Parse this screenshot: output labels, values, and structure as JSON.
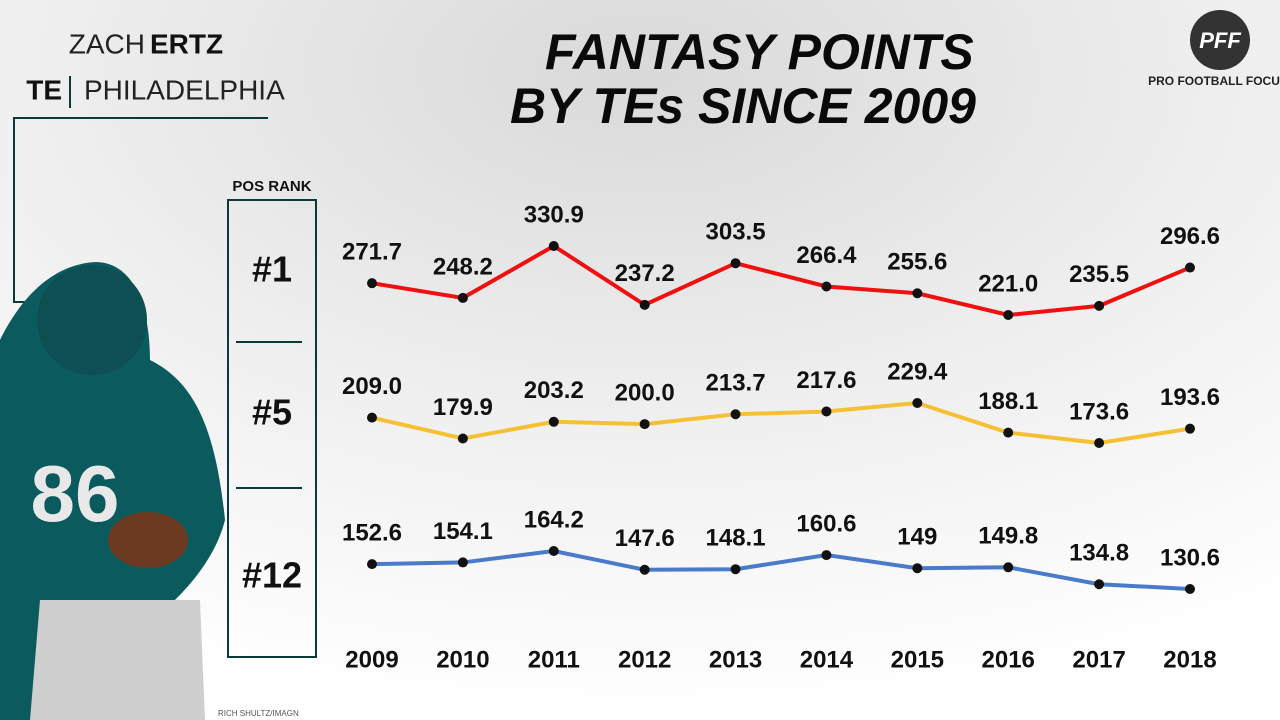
{
  "header": {
    "first_name": "ZACH",
    "last_name": "ERTZ",
    "position": "TE",
    "team": "PHILADELPHIA"
  },
  "logo": {
    "mark": "PFF",
    "text": "PRO FOOTBALL FOCUS"
  },
  "rank_label": "POS RANK",
  "credit": "RICH SHULTZ/IMAGN",
  "chart_data": {
    "type": "line",
    "title": [
      "FANTASY POINTS",
      "BY TEs SINCE 2009"
    ],
    "categories": [
      "2009",
      "2010",
      "2011",
      "2012",
      "2013",
      "2014",
      "2015",
      "2016",
      "2017",
      "2018"
    ],
    "series": [
      {
        "name": "#1",
        "color": "#f01010",
        "values": [
          271.7,
          248.2,
          330.9,
          237.2,
          303.5,
          266.4,
          255.6,
          221.0,
          235.5,
          296.6
        ],
        "value_labels": [
          "271.7",
          "248.2",
          "330.9",
          "237.2",
          "303.5",
          "266.4",
          "255.6",
          "221.0",
          "235.5",
          "296.6"
        ]
      },
      {
        "name": "#5",
        "color": "#f5c033",
        "values": [
          209.0,
          179.9,
          203.2,
          200.0,
          213.7,
          217.6,
          229.4,
          188.1,
          173.6,
          193.6
        ],
        "value_labels": [
          "209.0",
          "179.9",
          "203.2",
          "200.0",
          "213.7",
          "217.6",
          "229.4",
          "188.1",
          "173.6",
          "193.6"
        ]
      },
      {
        "name": "#12",
        "color": "#4a7acc",
        "values": [
          152.6,
          154.1,
          164.2,
          147.6,
          148.1,
          160.6,
          149,
          149.8,
          134.8,
          130.6
        ],
        "value_labels": [
          "152.6",
          "154.1",
          "164.2",
          "147.6",
          "148.1",
          "160.6",
          "149",
          "149.8",
          "134.8",
          "130.6"
        ]
      }
    ]
  }
}
